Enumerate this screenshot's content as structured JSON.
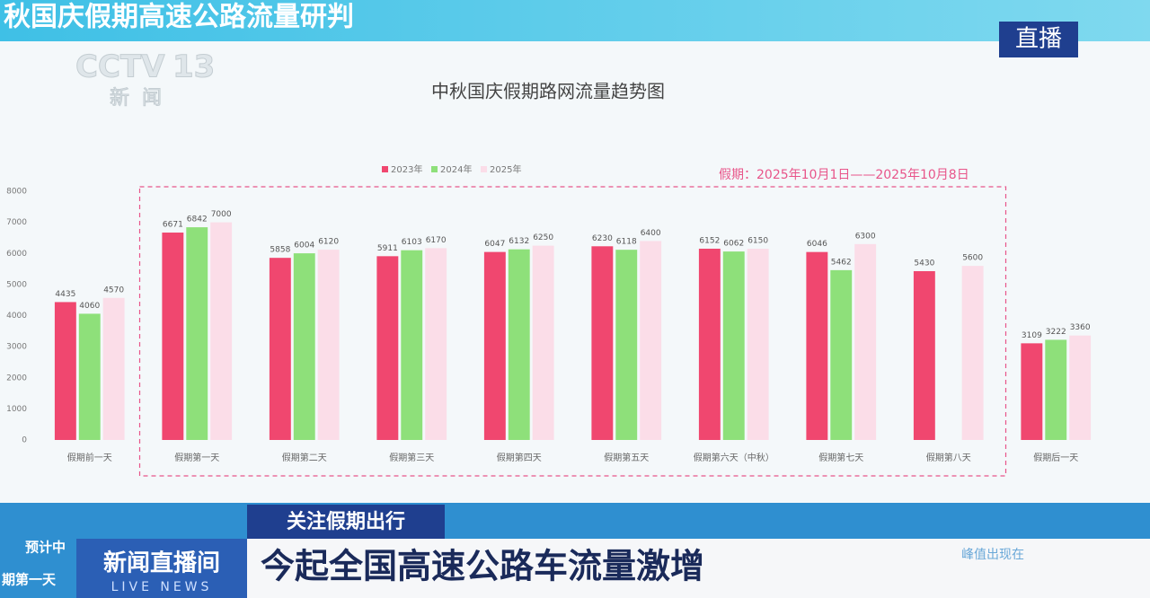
{
  "header": {
    "headline": "秋国庆假期高速公路流量研判",
    "live": "直播",
    "logo": "CCTV",
    "channel": "13",
    "logo_sub": "新闻"
  },
  "chart_data": {
    "type": "bar",
    "title": "中秋国庆假期路网流量趋势图",
    "annotation": "假期：2025年10月1日——2025年10月8日",
    "categories": [
      "假期前一天",
      "假期第一天",
      "假期第二天",
      "假期第三天",
      "假期第四天",
      "假期第五天",
      "假期第六天（中秋）",
      "假期第七天",
      "假期第八天",
      "假期后一天"
    ],
    "series": [
      {
        "name": "2023年",
        "color": "#f0476f",
        "values": [
          4435,
          6671,
          5858,
          5911,
          6047,
          6230,
          6152,
          6046,
          5430,
          3109
        ]
      },
      {
        "name": "2024年",
        "color": "#8ee07a",
        "values": [
          4060,
          6842,
          6004,
          6103,
          6132,
          6118,
          6062,
          5462,
          null,
          3222
        ]
      },
      {
        "name": "2025年",
        "color": "#fbdde8",
        "values": [
          4570,
          7000,
          6120,
          6170,
          6250,
          6400,
          6150,
          6300,
          5600,
          3360
        ]
      }
    ],
    "ylim": [
      0,
      8000
    ],
    "yticks": [
      0,
      1000,
      2000,
      3000,
      4000,
      5000,
      6000,
      7000,
      8000
    ],
    "grid": false,
    "legend": "top"
  },
  "footer": {
    "tag": "关注假期出行",
    "headline": "今起全国高速公路车流量激增",
    "program": "新闻直播间",
    "program_en": "LIVE NEWS",
    "ticker_left_top": "预计中",
    "ticker_left_bottom": "期第一天",
    "ticker_right": "峰值出现在"
  }
}
